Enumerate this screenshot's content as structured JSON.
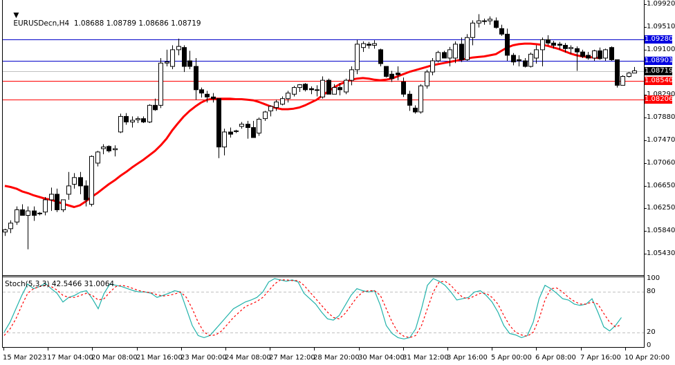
{
  "window": {
    "symbol_header": "EURUSDecn,H4  1.08688 1.08789 1.08686 1.08719",
    "stoch_header": "Stoch(5,3,3) 42.5466 31.0064"
  },
  "price_axis": {
    "ticks": [
      "1.09920",
      "1.09510",
      "1.09100",
      "1.08290",
      "1.07880",
      "1.07470",
      "1.07060",
      "1.06650",
      "1.06250",
      "1.05840",
      "1.05430"
    ],
    "badges": [
      {
        "label": "1.09280",
        "color": "#0000e0"
      },
      {
        "label": "1.08901",
        "color": "#0000e0"
      },
      {
        "label": "1.08719",
        "color": "#000000"
      },
      {
        "label": "1.08540",
        "color": "#ff0000"
      },
      {
        "label": "1.08206",
        "color": "#ff0000"
      }
    ]
  },
  "stoch_axis": {
    "ticks": [
      "100",
      "80",
      "20",
      "0"
    ]
  },
  "time_axis": {
    "labels": [
      "15 Mar 2023",
      "17 Mar 04:00",
      "20 Mar 08:00",
      "21 Mar 16:00",
      "23 Mar 00:00",
      "24 Mar 08:00",
      "27 Mar 12:00",
      "28 Mar 20:00",
      "30 Mar 04:00",
      "31 Mar 12:00",
      "3 Apr 16:00",
      "5 Apr 00:00",
      "6 Apr 08:00",
      "7 Apr 16:00",
      "10 Apr 20:00"
    ]
  },
  "colors": {
    "ma": "#ff0000",
    "stoch_main": "#20b2aa",
    "stoch_signal": "#ff0000",
    "resistance": "#0000c8",
    "support": "#ff0000",
    "current_price_line": "#c0c0c0"
  },
  "chart_data": [
    {
      "type": "candlestick",
      "title": "EURUSDecn,H4",
      "ohlc_last": {
        "open": 1.08688,
        "high": 1.08789,
        "low": 1.08686,
        "close": 1.08719
      },
      "ylim": [
        1.0543,
        1.0992
      ],
      "horizontal_lines": [
        {
          "price": 1.0928,
          "color": "blue"
        },
        {
          "price": 1.08901,
          "color": "blue"
        },
        {
          "price": 1.0854,
          "color": "red"
        },
        {
          "price": 1.08206,
          "color": "red"
        },
        {
          "price": 1.08719,
          "color": "gray",
          "label": "current"
        }
      ],
      "candles": [
        [
          1.0582,
          1.0588,
          1.0575,
          1.0586
        ],
        [
          1.0588,
          1.0603,
          1.058,
          1.0598
        ],
        [
          1.06,
          1.0628,
          1.0595,
          1.0622
        ],
        [
          1.0622,
          1.0632,
          1.0612,
          1.0612
        ],
        [
          1.0612,
          1.0628,
          1.0551,
          1.062
        ],
        [
          1.062,
          1.0628,
          1.0602,
          1.0612
        ],
        [
          1.0616,
          1.0618,
          1.0612,
          1.0615
        ],
        [
          1.0618,
          1.0645,
          1.0612,
          1.064
        ],
        [
          1.064,
          1.0662,
          1.062,
          1.065
        ],
        [
          1.065,
          1.066,
          1.0618,
          1.0622
        ],
        [
          1.0622,
          1.064,
          1.0618,
          1.064
        ],
        [
          1.065,
          1.069,
          1.064,
          1.0665
        ],
        [
          1.0668,
          1.0688,
          1.066,
          1.068
        ],
        [
          1.068,
          1.069,
          1.065,
          1.0665
        ],
        [
          1.0665,
          1.0675,
          1.0628,
          1.064
        ],
        [
          1.0632,
          1.072,
          1.0628,
          1.0718
        ],
        [
          1.0706,
          1.0728,
          1.07,
          1.0726
        ],
        [
          1.0732,
          1.074,
          1.0722,
          1.0735
        ],
        [
          1.0736,
          1.0738,
          1.0725,
          1.0728
        ],
        [
          1.073,
          1.0738,
          1.0718,
          1.0732
        ],
        [
          1.0762,
          1.0795,
          1.076,
          1.079
        ],
        [
          1.079,
          1.0796,
          1.0775,
          1.078
        ],
        [
          1.078,
          1.079,
          1.077,
          1.0783
        ],
        [
          1.0784,
          1.079,
          1.0778,
          1.0786
        ],
        [
          1.0786,
          1.079,
          1.0778,
          1.078
        ],
        [
          1.078,
          1.0812,
          1.0778,
          1.081
        ],
        [
          1.081,
          1.0822,
          1.08,
          1.0802
        ],
        [
          1.081,
          1.0895,
          1.0805,
          1.0886
        ],
        [
          1.0886,
          1.091,
          1.088,
          1.0888
        ],
        [
          1.088,
          1.0918,
          1.0875,
          1.091
        ],
        [
          1.091,
          1.093,
          1.09,
          1.0916
        ],
        [
          1.0914,
          1.0918,
          1.087,
          1.088
        ],
        [
          1.089,
          1.0908,
          1.0875,
          1.088
        ],
        [
          1.088,
          1.0895,
          1.082,
          1.0838
        ],
        [
          1.0838,
          1.0842,
          1.0824,
          1.0832
        ],
        [
          1.083,
          1.0836,
          1.0815,
          1.0825
        ],
        [
          1.0825,
          1.0832,
          1.0815,
          1.0822
        ],
        [
          1.0822,
          1.0822,
          1.0715,
          1.0735
        ],
        [
          1.0735,
          1.0768,
          1.072,
          1.0762
        ],
        [
          1.0762,
          1.077,
          1.0752,
          1.0758
        ],
        [
          1.0764,
          1.0766,
          1.076,
          1.0763
        ],
        [
          1.0772,
          1.078,
          1.0768,
          1.0776
        ],
        [
          1.0776,
          1.0782,
          1.075,
          1.077
        ],
        [
          1.077,
          1.0782,
          1.0755,
          1.0752
        ],
        [
          1.076,
          1.0788,
          1.0755,
          1.0785
        ],
        [
          1.0786,
          1.08,
          1.0782,
          1.0798
        ],
        [
          1.08,
          1.081,
          1.079,
          1.0808
        ],
        [
          1.0806,
          1.082,
          1.08,
          1.0816
        ],
        [
          1.0812,
          1.0826,
          1.081,
          1.0822
        ],
        [
          1.0822,
          1.0836,
          1.0815,
          1.0832
        ],
        [
          1.083,
          1.0845,
          1.0826,
          1.0842
        ],
        [
          1.0842,
          1.0848,
          1.0834,
          1.0847
        ],
        [
          1.0848,
          1.085,
          1.0835,
          1.0838
        ],
        [
          1.084,
          1.0844,
          1.083,
          1.0838
        ],
        [
          1.0838,
          1.0846,
          1.0826,
          1.0838
        ],
        [
          1.0825,
          1.0862,
          1.0822,
          1.0855
        ],
        [
          1.0855,
          1.0858,
          1.083,
          1.083
        ],
        [
          1.083,
          1.0848,
          1.083,
          1.0842
        ],
        [
          1.0842,
          1.085,
          1.0828,
          1.0838
        ],
        [
          1.0834,
          1.0858,
          1.083,
          1.0855
        ],
        [
          1.0855,
          1.088,
          1.0846,
          1.0874
        ],
        [
          1.0874,
          1.0928,
          1.0866,
          1.092
        ],
        [
          1.0914,
          1.0925,
          1.0906,
          1.0921
        ],
        [
          1.092,
          1.0924,
          1.0912,
          1.0918
        ],
        [
          1.0918,
          1.0927,
          1.0912,
          1.0921
        ],
        [
          1.091,
          1.0912,
          1.088,
          1.0885
        ],
        [
          1.088,
          1.088,
          1.086,
          1.0862
        ],
        [
          1.0866,
          1.0872,
          1.0852,
          1.0858
        ],
        [
          1.0868,
          1.088,
          1.0855,
          1.0865
        ],
        [
          1.0852,
          1.086,
          1.0825,
          1.083
        ],
        [
          1.083,
          1.0836,
          1.08,
          1.081
        ],
        [
          1.0805,
          1.081,
          1.0795,
          1.0798
        ],
        [
          1.0798,
          1.0848,
          1.0795,
          1.0845
        ],
        [
          1.0845,
          1.0874,
          1.084,
          1.087
        ],
        [
          1.087,
          1.0895,
          1.0864,
          1.089
        ],
        [
          1.089,
          1.0908,
          1.0887,
          1.0905
        ],
        [
          1.0905,
          1.0908,
          1.0895,
          1.0895
        ],
        [
          1.0895,
          1.0915,
          1.088,
          1.091
        ],
        [
          1.0895,
          1.0925,
          1.0886,
          1.092
        ],
        [
          1.092,
          1.0932,
          1.0888,
          1.0892
        ],
        [
          1.0892,
          1.0938,
          1.089,
          1.0932
        ],
        [
          1.0932,
          1.0963,
          1.0918,
          1.0958
        ],
        [
          1.0958,
          1.0974,
          1.095,
          1.0962
        ],
        [
          1.0962,
          1.0966,
          1.0955,
          1.0962
        ],
        [
          1.0962,
          1.097,
          1.0955,
          1.0965
        ],
        [
          1.0962,
          1.0968,
          1.0948,
          1.095
        ],
        [
          1.0948,
          1.0955,
          1.0935,
          1.0938
        ],
        [
          1.0938,
          1.0948,
          1.089,
          1.09
        ],
        [
          1.09,
          1.0904,
          1.0882,
          1.0888
        ],
        [
          1.0892,
          1.09,
          1.088,
          1.089
        ],
        [
          1.089,
          1.0895,
          1.0878,
          1.088
        ],
        [
          1.088,
          1.0905,
          1.0878,
          1.0902
        ],
        [
          1.0895,
          1.0918,
          1.0885,
          1.091
        ],
        [
          1.091,
          1.0932,
          1.088,
          1.0928
        ],
        [
          1.0928,
          1.0936,
          1.0918,
          1.0922
        ],
        [
          1.0922,
          1.0926,
          1.0912,
          1.0918
        ],
        [
          1.092,
          1.0924,
          1.091,
          1.0918
        ],
        [
          1.0918,
          1.0922,
          1.0905,
          1.0912
        ],
        [
          1.0912,
          1.0918,
          1.0902,
          1.0914
        ],
        [
          1.0912,
          1.0916,
          1.0872,
          1.0906
        ],
        [
          1.0906,
          1.091,
          1.0895,
          1.0898
        ],
        [
          1.09,
          1.0906,
          1.0892,
          1.0895
        ],
        [
          1.0895,
          1.091,
          1.089,
          1.0908
        ],
        [
          1.0908,
          1.0914,
          1.0892,
          1.0894
        ],
        [
          1.0895,
          1.0912,
          1.089,
          1.091
        ],
        [
          1.0914,
          1.0916,
          1.089,
          1.0892
        ],
        [
          1.0892,
          1.0892,
          1.0842,
          1.0846
        ],
        [
          1.0846,
          1.0864,
          1.0846,
          1.0862
        ],
        [
          1.0862,
          1.087,
          1.086,
          1.0868
        ],
        [
          1.0868,
          1.0879,
          1.0868,
          1.0872
        ]
      ],
      "ma": [
        1.0665,
        1.0663,
        1.066,
        1.0655,
        1.0652,
        1.0648,
        1.0645,
        1.0642,
        1.064,
        1.0637,
        1.0633,
        1.063,
        1.0627,
        1.063,
        1.0637,
        1.0645,
        1.0652,
        1.066,
        1.0668,
        1.0675,
        1.0683,
        1.069,
        1.0698,
        1.0705,
        1.0712,
        1.072,
        1.0728,
        1.0738,
        1.075,
        1.0765,
        1.0778,
        1.079,
        1.08,
        1.0808,
        1.0815,
        1.082,
        1.0822,
        1.0822,
        1.0822,
        1.0822,
        1.0821,
        1.0821,
        1.082,
        1.0819,
        1.0816,
        1.0812,
        1.0808,
        1.0805,
        1.0803,
        1.0803,
        1.0804,
        1.0806,
        1.081,
        1.0815,
        1.082,
        1.0828,
        1.0835,
        1.0842,
        1.0848,
        1.0852,
        1.0856,
        1.0858,
        1.0859,
        1.0858,
        1.0856,
        1.0855,
        1.0856,
        1.0858,
        1.0862,
        1.0866,
        1.087,
        1.0873,
        1.0876,
        1.0879,
        1.0882,
        1.0884,
        1.0886,
        1.0888,
        1.089,
        1.0892,
        1.0894,
        1.0896,
        1.0897,
        1.0898,
        1.09,
        1.0902,
        1.0908,
        1.0914,
        1.0918,
        1.092,
        1.0921,
        1.0921,
        1.092,
        1.0919,
        1.0917,
        1.0914,
        1.0911,
        1.0907,
        1.0903,
        1.09,
        1.0898,
        1.0897,
        1.0896,
        1.0895
      ]
    },
    {
      "type": "line",
      "title": "Stoch(5,3,3) 42.5466 31.0064",
      "ylim": [
        0,
        100
      ],
      "levels": [
        20,
        80
      ],
      "series": [
        {
          "name": "%K",
          "color": "#20b2aa",
          "values": [
            20,
            35,
            55,
            75,
            92,
            85,
            88,
            93,
            85,
            78,
            65,
            72,
            75,
            80,
            82,
            70,
            55,
            78,
            92,
            90,
            88,
            85,
            82,
            80,
            80,
            78,
            72,
            75,
            78,
            82,
            80,
            55,
            30,
            15,
            12,
            15,
            25,
            35,
            45,
            55,
            60,
            65,
            68,
            72,
            80,
            95,
            100,
            98,
            96,
            98,
            95,
            78,
            70,
            62,
            50,
            40,
            38,
            45,
            60,
            75,
            85,
            82,
            80,
            82,
            60,
            30,
            18,
            12,
            10,
            12,
            25,
            55,
            90,
            100,
            96,
            90,
            80,
            68,
            70,
            72,
            80,
            82,
            75,
            65,
            50,
            30,
            18,
            16,
            12,
            15,
            35,
            70,
            90,
            85,
            78,
            70,
            68,
            62,
            60,
            62,
            70,
            50,
            28,
            22,
            30,
            42
          ]
        },
        {
          "name": "%D",
          "color": "#ff0000",
          "values": [
            15,
            25,
            40,
            60,
            78,
            85,
            88,
            90,
            88,
            83,
            75,
            72,
            72,
            75,
            78,
            75,
            68,
            70,
            80,
            88,
            90,
            88,
            85,
            82,
            80,
            79,
            76,
            74,
            75,
            77,
            80,
            72,
            55,
            35,
            20,
            15,
            16,
            22,
            32,
            42,
            50,
            58,
            62,
            66,
            72,
            82,
            92,
            98,
            98,
            97,
            97,
            90,
            80,
            70,
            60,
            50,
            42,
            40,
            48,
            60,
            72,
            80,
            82,
            82,
            75,
            55,
            35,
            20,
            14,
            12,
            15,
            30,
            55,
            80,
            95,
            96,
            90,
            80,
            72,
            70,
            74,
            78,
            78,
            72,
            62,
            45,
            30,
            20,
            16,
            14,
            20,
            40,
            68,
            85,
            86,
            80,
            72,
            66,
            62,
            62,
            65,
            62,
            48,
            35,
            28,
            31
          ]
        }
      ]
    }
  ]
}
